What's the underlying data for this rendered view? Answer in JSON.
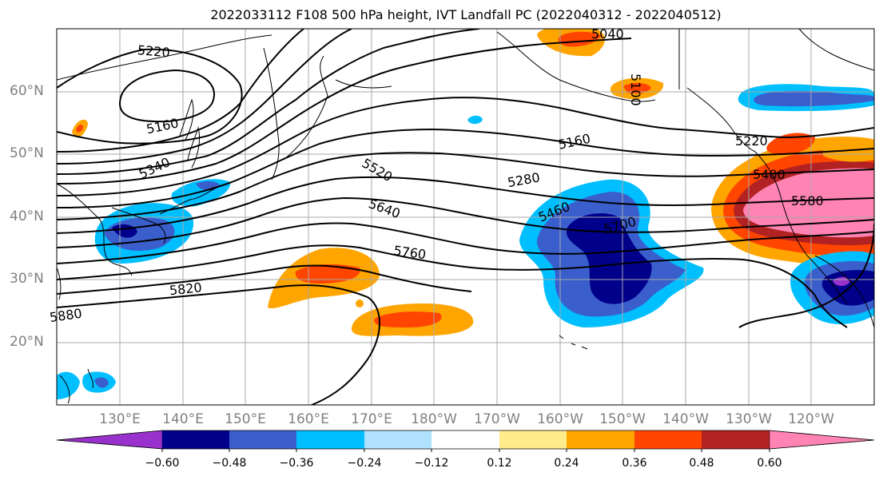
{
  "title": "2022033112 F108 500 hPa height, IVT Landfall PC (2022040312 - 2022040512)",
  "lat_labels": [
    "60°N",
    "50°N",
    "40°N",
    "30°N",
    "20°N"
  ],
  "lon_labels": [
    "130°E",
    "140°E",
    "150°E",
    "160°E",
    "170°E",
    "180°W",
    "170°W",
    "160°W",
    "150°W",
    "140°W",
    "130°W",
    "120°W"
  ],
  "contour_labels": [
    "5220",
    "5160",
    "5340",
    "5520",
    "5640",
    "5760",
    "5820",
    "5880",
    "5040",
    "5100",
    "5160",
    "5280",
    "5460",
    "5700",
    "5220",
    "5400",
    "5580"
  ],
  "colorbar": {
    "ticks": [
      "−0.60",
      "−0.48",
      "−0.36",
      "−0.24",
      "−0.12",
      "0.12",
      "0.24",
      "0.36",
      "0.48",
      "0.60"
    ],
    "colors": [
      "#9932cc",
      "#00008b",
      "#3a5fcd",
      "#00bfff",
      "#b0e2ff",
      "#ffffff",
      "#ffec8b",
      "#ffa500",
      "#ff4500",
      "#b22222",
      "#ff83b3"
    ]
  }
}
